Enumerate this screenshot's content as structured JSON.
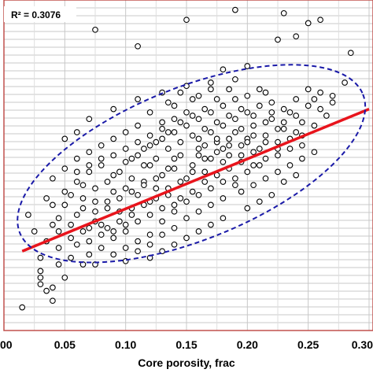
{
  "chart_data": {
    "type": "scatter",
    "title": "",
    "xlabel": "Core porosity, frac",
    "ylabel": "",
    "annotation": "R² = 0.3076",
    "xlim": [
      0.0,
      0.3
    ],
    "ylim": [
      0,
      100
    ],
    "x_ticks": [
      0.0,
      0.05,
      0.1,
      0.15,
      0.2,
      0.25,
      0.3
    ],
    "x_tick_labels": [
      "00",
      "0.05",
      "0.10",
      "0.15",
      "0.20",
      "0.25",
      "0.30"
    ],
    "grid": true,
    "legend": "none",
    "colors": {
      "points": "#000000",
      "fit_line": "#e8141c",
      "ellipse": "#1a1aa8",
      "frame": "#c0504d",
      "grid": "#c8c8c8"
    },
    "fit_line": {
      "x": [
        0.015,
        0.3
      ],
      "y": [
        24,
        67
      ]
    },
    "ellipse": {
      "cx": 0.154,
      "cy": 50.5,
      "rx": 0.152,
      "ry": 23,
      "angle_deg": -22
    },
    "points": [
      [
        0.075,
        91
      ],
      [
        0.015,
        7
      ],
      [
        0.03,
        14
      ],
      [
        0.03,
        16
      ],
      [
        0.04,
        9
      ],
      [
        0.035,
        12
      ],
      [
        0.04,
        13
      ],
      [
        0.05,
        16
      ],
      [
        0.045,
        20
      ],
      [
        0.055,
        22
      ],
      [
        0.065,
        20
      ],
      [
        0.075,
        20
      ],
      [
        0.09,
        23
      ],
      [
        0.1,
        25
      ],
      [
        0.11,
        27
      ],
      [
        0.12,
        29
      ],
      [
        0.13,
        33
      ],
      [
        0.14,
        36
      ],
      [
        0.03,
        22
      ],
      [
        0.035,
        27
      ],
      [
        0.045,
        30
      ],
      [
        0.045,
        34
      ],
      [
        0.055,
        32
      ],
      [
        0.06,
        26
      ],
      [
        0.07,
        31
      ],
      [
        0.075,
        36
      ],
      [
        0.08,
        32
      ],
      [
        0.085,
        39
      ],
      [
        0.09,
        42
      ],
      [
        0.095,
        36
      ],
      [
        0.1,
        43
      ],
      [
        0.105,
        37
      ],
      [
        0.11,
        41
      ],
      [
        0.115,
        45
      ],
      [
        0.12,
        39
      ],
      [
        0.125,
        43
      ],
      [
        0.13,
        47
      ],
      [
        0.135,
        41
      ],
      [
        0.14,
        49
      ],
      [
        0.145,
        53
      ],
      [
        0.15,
        46
      ],
      [
        0.155,
        50
      ],
      [
        0.16,
        55
      ],
      [
        0.165,
        48
      ],
      [
        0.17,
        52
      ],
      [
        0.175,
        57
      ],
      [
        0.18,
        51
      ],
      [
        0.185,
        56
      ],
      [
        0.19,
        60
      ],
      [
        0.195,
        53
      ],
      [
        0.2,
        58
      ],
      [
        0.205,
        62
      ],
      [
        0.21,
        55
      ],
      [
        0.215,
        59
      ],
      [
        0.22,
        64
      ],
      [
        0.225,
        57
      ],
      [
        0.23,
        61
      ],
      [
        0.235,
        66
      ],
      [
        0.24,
        60
      ],
      [
        0.245,
        63
      ],
      [
        0.25,
        68
      ],
      [
        0.255,
        62
      ],
      [
        0.26,
        72
      ],
      [
        0.265,
        65
      ],
      [
        0.285,
        84
      ],
      [
        0.24,
        89
      ],
      [
        0.225,
        88
      ],
      [
        0.23,
        96
      ],
      [
        0.26,
        94
      ],
      [
        0.25,
        93
      ],
      [
        0.19,
        97
      ],
      [
        0.15,
        94
      ],
      [
        0.11,
        86
      ],
      [
        0.2,
        80
      ],
      [
        0.18,
        79
      ],
      [
        0.17,
        75
      ],
      [
        0.215,
        72
      ],
      [
        0.16,
        71
      ],
      [
        0.14,
        68
      ],
      [
        0.12,
        66
      ],
      [
        0.13,
        63
      ],
      [
        0.11,
        62
      ],
      [
        0.1,
        60
      ],
      [
        0.09,
        58
      ],
      [
        0.08,
        56
      ],
      [
        0.07,
        54
      ],
      [
        0.06,
        52
      ],
      [
        0.05,
        49
      ],
      [
        0.04,
        46
      ],
      [
        0.035,
        40
      ],
      [
        0.04,
        38
      ],
      [
        0.05,
        42
      ],
      [
        0.06,
        45
      ],
      [
        0.07,
        48
      ],
      [
        0.08,
        50
      ],
      [
        0.09,
        47
      ],
      [
        0.1,
        51
      ],
      [
        0.11,
        53
      ],
      [
        0.12,
        56
      ],
      [
        0.13,
        58
      ],
      [
        0.14,
        60
      ],
      [
        0.15,
        62
      ],
      [
        0.16,
        64
      ],
      [
        0.17,
        66
      ],
      [
        0.18,
        68
      ],
      [
        0.19,
        70
      ],
      [
        0.2,
        71
      ],
      [
        0.21,
        73
      ],
      [
        0.22,
        69
      ],
      [
        0.23,
        67
      ],
      [
        0.24,
        70
      ],
      [
        0.25,
        73
      ],
      [
        0.27,
        71
      ],
      [
        0.28,
        75
      ],
      [
        0.19,
        44
      ],
      [
        0.18,
        40
      ],
      [
        0.17,
        38
      ],
      [
        0.16,
        36
      ],
      [
        0.15,
        34
      ],
      [
        0.14,
        31
      ],
      [
        0.13,
        29
      ],
      [
        0.12,
        26
      ],
      [
        0.11,
        24
      ],
      [
        0.1,
        30
      ],
      [
        0.09,
        28
      ],
      [
        0.08,
        25
      ],
      [
        0.07,
        23
      ],
      [
        0.06,
        35
      ],
      [
        0.05,
        38
      ],
      [
        0.065,
        40
      ],
      [
        0.075,
        43
      ],
      [
        0.085,
        45
      ],
      [
        0.095,
        48
      ],
      [
        0.105,
        46
      ],
      [
        0.115,
        50
      ],
      [
        0.125,
        52
      ],
      [
        0.135,
        55
      ],
      [
        0.145,
        57
      ],
      [
        0.155,
        59
      ],
      [
        0.165,
        61
      ],
      [
        0.175,
        63
      ],
      [
        0.185,
        65
      ],
      [
        0.195,
        67
      ],
      [
        0.205,
        65
      ],
      [
        0.215,
        63
      ],
      [
        0.225,
        61
      ],
      [
        0.235,
        58
      ],
      [
        0.245,
        56
      ],
      [
        0.21,
        50
      ],
      [
        0.2,
        48
      ],
      [
        0.19,
        46
      ],
      [
        0.18,
        45
      ],
      [
        0.17,
        43
      ],
      [
        0.16,
        41
      ],
      [
        0.15,
        39
      ],
      [
        0.14,
        38
      ],
      [
        0.13,
        37
      ],
      [
        0.12,
        35
      ],
      [
        0.11,
        33
      ],
      [
        0.1,
        32
      ],
      [
        0.09,
        30
      ],
      [
        0.08,
        29
      ],
      [
        0.07,
        27
      ],
      [
        0.15,
        66
      ],
      [
        0.14,
        64
      ],
      [
        0.13,
        61
      ],
      [
        0.12,
        59
      ],
      [
        0.11,
        57
      ],
      [
        0.1,
        55
      ],
      [
        0.09,
        53
      ],
      [
        0.08,
        52
      ],
      [
        0.07,
        50
      ],
      [
        0.06,
        48
      ],
      [
        0.16,
        58
      ],
      [
        0.17,
        60
      ],
      [
        0.18,
        62
      ],
      [
        0.19,
        64
      ],
      [
        0.2,
        66
      ],
      [
        0.21,
        68
      ],
      [
        0.22,
        66
      ],
      [
        0.23,
        63
      ],
      [
        0.24,
        65
      ],
      [
        0.26,
        67
      ],
      [
        0.27,
        69
      ],
      [
        0.255,
        70
      ],
      [
        0.245,
        59
      ],
      [
        0.235,
        55
      ],
      [
        0.225,
        53
      ],
      [
        0.215,
        52
      ],
      [
        0.205,
        54
      ],
      [
        0.195,
        56
      ],
      [
        0.185,
        58
      ],
      [
        0.175,
        54
      ],
      [
        0.165,
        52
      ],
      [
        0.155,
        48
      ],
      [
        0.145,
        45
      ],
      [
        0.135,
        43
      ],
      [
        0.125,
        40
      ],
      [
        0.115,
        38
      ],
      [
        0.105,
        35
      ],
      [
        0.095,
        33
      ],
      [
        0.085,
        31
      ],
      [
        0.075,
        33
      ],
      [
        0.065,
        30
      ],
      [
        0.055,
        28
      ],
      [
        0.045,
        25
      ],
      [
        0.03,
        18
      ],
      [
        0.025,
        30
      ],
      [
        0.02,
        35
      ],
      [
        0.04,
        32
      ],
      [
        0.135,
        69
      ],
      [
        0.145,
        72
      ],
      [
        0.155,
        70
      ],
      [
        0.165,
        67
      ],
      [
        0.175,
        70
      ],
      [
        0.185,
        73
      ],
      [
        0.195,
        61
      ],
      [
        0.205,
        59
      ],
      [
        0.215,
        57
      ],
      [
        0.225,
        55
      ],
      [
        0.165,
        45
      ],
      [
        0.175,
        47
      ],
      [
        0.185,
        49
      ],
      [
        0.195,
        51
      ],
      [
        0.205,
        50
      ],
      [
        0.155,
        42
      ],
      [
        0.145,
        40
      ],
      [
        0.135,
        49
      ],
      [
        0.125,
        46
      ],
      [
        0.115,
        44
      ],
      [
        0.105,
        42
      ],
      [
        0.095,
        40
      ],
      [
        0.085,
        37
      ],
      [
        0.075,
        39
      ],
      [
        0.065,
        37
      ],
      [
        0.055,
        41
      ],
      [
        0.105,
        52
      ],
      [
        0.115,
        55
      ],
      [
        0.125,
        57
      ],
      [
        0.135,
        60
      ],
      [
        0.145,
        63
      ],
      [
        0.155,
        65
      ],
      [
        0.165,
        56
      ],
      [
        0.175,
        58
      ],
      [
        0.185,
        53
      ],
      [
        0.195,
        42
      ],
      [
        0.205,
        44
      ],
      [
        0.215,
        46
      ],
      [
        0.225,
        48
      ],
      [
        0.235,
        50
      ],
      [
        0.245,
        52
      ],
      [
        0.255,
        54
      ],
      [
        0.19,
        76
      ],
      [
        0.17,
        73
      ],
      [
        0.15,
        74
      ],
      [
        0.13,
        72
      ],
      [
        0.11,
        70
      ],
      [
        0.09,
        67
      ],
      [
        0.07,
        64
      ],
      [
        0.05,
        58
      ],
      [
        0.2,
        37
      ],
      [
        0.21,
        39
      ],
      [
        0.22,
        41
      ],
      [
        0.23,
        45
      ],
      [
        0.24,
        47
      ],
      [
        0.18,
        34
      ],
      [
        0.17,
        32
      ],
      [
        0.16,
        30
      ],
      [
        0.15,
        28
      ],
      [
        0.14,
        26
      ],
      [
        0.13,
        24
      ],
      [
        0.12,
        22
      ],
      [
        0.1,
        21
      ],
      [
        0.065,
        44
      ],
      [
        0.06,
        60
      ],
      [
        0.12,
        50
      ],
      [
        0.14,
        52
      ],
      [
        0.16,
        53
      ],
      [
        0.18,
        55
      ],
      [
        0.2,
        57
      ]
    ]
  }
}
